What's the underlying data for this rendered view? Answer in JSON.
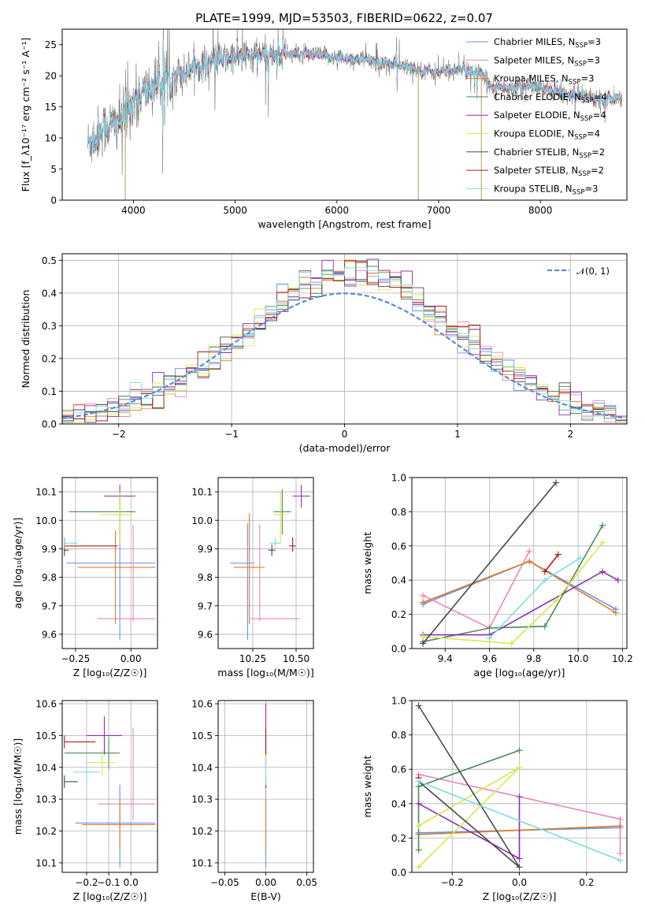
{
  "figure_title": "PLATE=1999, MJD=53503, FIBERID=0622, z=0.07",
  "colors": [
    "#6495ed",
    "#e887c0",
    "#e07b26",
    "#4e8a5a",
    "#8b2fb7",
    "#d6e84b",
    "#4a4a4a",
    "#b01c1c",
    "#7fdce0"
  ],
  "chart_data": [
    {
      "id": "spectrum",
      "type": "line",
      "title": "PLATE=1999, MJD=53503, FIBERID=0622, z=0.07",
      "xlabel": "wavelength [Angstrom, rest frame]",
      "ylabel": "Flux [f_λ10⁻¹⁷ erg cm⁻² s⁻¹ A⁻¹]",
      "xlim": [
        3300,
        8850
      ],
      "ylim": [
        0,
        27.5
      ],
      "xticks": [
        4000,
        5000,
        6000,
        7000,
        8000
      ],
      "yticks": [
        0,
        5,
        10,
        15,
        20,
        25
      ],
      "legend_position": "upper-right",
      "grid": false,
      "legend": [
        {
          "name": "Chabrier MILES, N_SSP=3",
          "label_main": "Chabrier MILES, N",
          "label_sub": "SSP",
          "label_end": "=3"
        },
        {
          "name": "Salpeter MILES, N_SSP=3",
          "label_main": "Salpeter MILES, N",
          "label_sub": "SSP",
          "label_end": "=3"
        },
        {
          "name": "Kroupa MILES, N_SSP=3",
          "label_main": "Kroupa MILES, N",
          "label_sub": "SSP",
          "label_end": "=3"
        },
        {
          "name": "Chabrier ELODIE, N_SSP=4",
          "label_main": "Chabrier ELODIE, N",
          "label_sub": "SSP",
          "label_end": "=4"
        },
        {
          "name": "Salpeter ELODIE, N_SSP=4",
          "label_main": "Salpeter ELODIE, N",
          "label_sub": "SSP",
          "label_end": "=4"
        },
        {
          "name": "Kroupa ELODIE, N_SSP=4",
          "label_main": "Kroupa ELODIE, N",
          "label_sub": "SSP",
          "label_end": "=4"
        },
        {
          "name": "Chabrier STELIB, N_SSP=2",
          "label_main": "Chabrier STELIB, N",
          "label_sub": "SSP",
          "label_end": "=2"
        },
        {
          "name": "Salpeter STELIB, N_SSP=2",
          "label_main": "Salpeter STELIB, N",
          "label_sub": "SSP",
          "label_end": "=2"
        },
        {
          "name": "Kroupa STELIB, N_SSP=3",
          "label_main": "Kroupa STELIB, N",
          "label_sub": "SSP",
          "label_end": "=3"
        }
      ],
      "continuum_x": [
        3550,
        3700,
        3900,
        4000,
        4200,
        4400,
        4600,
        4800,
        5000,
        5200,
        5500,
        5800,
        6000,
        6300,
        6500,
        6800,
        7000,
        7200,
        7400,
        7500,
        7700,
        7900,
        8100,
        8300,
        8500,
        8800
      ],
      "continuum_y": [
        9,
        11.5,
        13,
        16,
        18.5,
        20,
        21.5,
        22.5,
        23,
        23.2,
        23.5,
        23.3,
        23,
        22.5,
        22,
        21,
        20.5,
        21,
        20.5,
        18.5,
        18,
        18.5,
        17.5,
        17,
        16.5,
        16.5
      ],
      "artifact_lines_x": [
        3920,
        6800,
        7420
      ]
    },
    {
      "id": "residuals",
      "type": "step",
      "xlabel": "(data-model)/error",
      "ylabel": "Normed distribution",
      "xlim": [
        -2.5,
        2.5
      ],
      "ylim": [
        0,
        0.52
      ],
      "xticks": [
        -2,
        -1,
        0,
        1,
        2
      ],
      "yticks": [
        0.0,
        0.1,
        0.2,
        0.3,
        0.4,
        0.5
      ],
      "grid": true,
      "bin_width": 0.1,
      "legend": [
        {
          "name": "𝒩(0, 1)",
          "style": "dashed"
        }
      ],
      "legend_position": "upper-right"
    },
    {
      "id": "age-vs-Z",
      "type": "errorbar",
      "xlabel": "Z [log₁₀(Z/Z☉)]",
      "ylabel": "age  [log₁₀(age/yr)]",
      "xlim": [
        -0.31,
        0.12
      ],
      "ylim": [
        9.55,
        10.15
      ],
      "xticks": [
        -0.25,
        0.0
      ],
      "xtick_labels": [
        "−0.25",
        "0.00"
      ],
      "yticks": [
        9.6,
        9.7,
        9.8,
        9.9,
        10.0,
        10.1
      ],
      "grid": true,
      "points": [
        {
          "x": -0.05,
          "xerr": [
            0.24,
            0.16
          ],
          "y": 9.85,
          "yerr": [
            0.27,
            0.17
          ]
        },
        {
          "x": 0.01,
          "xerr": [
            0.16,
            0.1
          ],
          "y": 9.655,
          "yerr": [
            0.01,
            0.33
          ]
        },
        {
          "x": -0.07,
          "xerr": [
            0.17,
            0.18
          ],
          "y": 9.835,
          "yerr": [
            0.2,
            0.13
          ]
        },
        {
          "x": -0.05,
          "xerr": [
            0.23,
            0.07
          ],
          "y": 10.03,
          "yerr": [
            0.08,
            0.06
          ]
        },
        {
          "x": -0.05,
          "xerr": [
            0.07,
            0.07
          ],
          "y": 10.085,
          "yerr": [
            0.03,
            0.04
          ]
        },
        {
          "x": -0.05,
          "xerr": [
            0.09,
            0.05
          ],
          "y": 10.02,
          "yerr": [
            0.1,
            0.08
          ]
        },
        {
          "x": -0.3,
          "xerr": [
            0.0,
            0.02
          ],
          "y": 9.895,
          "yerr": [
            0.02,
            0.02
          ]
        },
        {
          "x": -0.3,
          "xerr": [
            0.0,
            0.24
          ],
          "y": 9.91,
          "yerr": [
            0.02,
            0.03
          ]
        },
        {
          "x": -0.3,
          "xerr": [
            0.0,
            0.06
          ],
          "y": 9.92,
          "yerr": [
            0.02,
            0.02
          ]
        }
      ]
    },
    {
      "id": "age-vs-mass",
      "type": "errorbar",
      "xlabel": "mass [log₁₀(M/M☉)]",
      "ylabel": "",
      "xlim": [
        10.05,
        10.6
      ],
      "ylim": [
        9.55,
        10.15
      ],
      "xticks": [
        10.25,
        10.5
      ],
      "xtick_labels": [
        "10.25",
        "10.50"
      ],
      "yticks": [
        9.6,
        9.7,
        9.8,
        9.9,
        10.0,
        10.1
      ],
      "grid": true,
      "points": [
        {
          "x": 10.22,
          "xerr": [
            0.1,
            0.04
          ],
          "y": 9.85,
          "yerr": [
            0.27,
            0.14
          ]
        },
        {
          "x": 10.29,
          "xerr": [
            0.05,
            0.23
          ],
          "y": 9.655,
          "yerr": [
            0.01,
            0.33
          ]
        },
        {
          "x": 10.23,
          "xerr": [
            0.09,
            0.09
          ],
          "y": 9.835,
          "yerr": [
            0.2,
            0.19
          ]
        },
        {
          "x": 10.42,
          "xerr": [
            0.05,
            0.05
          ],
          "y": 10.03,
          "yerr": [
            0.08,
            0.08
          ]
        },
        {
          "x": 10.53,
          "xerr": [
            0.05,
            0.05
          ],
          "y": 10.085,
          "yerr": [
            0.04,
            0.04
          ]
        },
        {
          "x": 10.41,
          "xerr": [
            0.04,
            0.04
          ],
          "y": 10.02,
          "yerr": [
            0.1,
            0.08
          ]
        },
        {
          "x": 10.36,
          "xerr": [
            0.02,
            0.02
          ],
          "y": 9.895,
          "yerr": [
            0.02,
            0.02
          ]
        },
        {
          "x": 10.48,
          "xerr": [
            0.02,
            0.02
          ],
          "y": 9.91,
          "yerr": [
            0.02,
            0.03
          ]
        },
        {
          "x": 10.38,
          "xerr": [
            0.03,
            0.03
          ],
          "y": 9.92,
          "yerr": [
            0.02,
            0.02
          ]
        }
      ]
    },
    {
      "id": "weight-vs-age",
      "type": "line",
      "xlabel": "age  [log₁₀(age/yr)]",
      "ylabel": "mass weight",
      "xlim": [
        9.25,
        10.22
      ],
      "ylim": [
        0.0,
        1.0
      ],
      "xticks": [
        9.4,
        9.6,
        9.8,
        10.0,
        10.2
      ],
      "yticks": [
        0.0,
        0.2,
        0.4,
        0.6,
        0.8,
        1.0
      ],
      "grid": true,
      "series": [
        {
          "x": [
            9.3,
            9.78,
            10.17
          ],
          "y": [
            0.26,
            0.51,
            0.23
          ]
        },
        {
          "x": [
            9.3,
            9.6,
            9.78
          ],
          "y": [
            0.31,
            0.12,
            0.57
          ]
        },
        {
          "x": [
            9.3,
            9.78,
            10.17
          ],
          "y": [
            0.27,
            0.51,
            0.21
          ]
        },
        {
          "x": [
            9.3,
            9.6,
            9.85,
            10.11
          ],
          "y": [
            0.04,
            0.12,
            0.13,
            0.72
          ]
        },
        {
          "x": [
            9.3,
            9.6,
            10.11,
            10.18
          ],
          "y": [
            0.08,
            0.08,
            0.45,
            0.4
          ]
        },
        {
          "x": [
            9.3,
            9.7,
            9.9,
            10.11
          ],
          "y": [
            0.07,
            0.03,
            0.28,
            0.62
          ]
        },
        {
          "x": [
            9.3,
            9.9
          ],
          "y": [
            0.03,
            0.97
          ]
        },
        {
          "x": [
            9.85,
            9.91
          ],
          "y": [
            0.45,
            0.55
          ]
        },
        {
          "x": [
            9.6,
            9.85,
            10.01
          ],
          "y": [
            0.06,
            0.4,
            0.53
          ]
        }
      ]
    },
    {
      "id": "mass-vs-Z",
      "type": "errorbar",
      "xlabel": "Z [log₁₀(Z/Z☉)]",
      "ylabel": "mass [log₁₀(M/M☉)]",
      "xlim": [
        -0.31,
        0.12
      ],
      "ylim": [
        10.07,
        10.61
      ],
      "xticks": [
        -0.2,
        -0.1,
        0.0
      ],
      "xtick_labels": [
        "−0.2",
        "−0.1",
        "0.0"
      ],
      "yticks": [
        10.1,
        10.2,
        10.3,
        10.4,
        10.5,
        10.6
      ],
      "grid": true,
      "points": [
        {
          "x": -0.05,
          "xerr": [
            0.2,
            0.16
          ],
          "y": 10.225,
          "yerr": [
            0.14,
            0.12
          ]
        },
        {
          "x": 0.01,
          "xerr": [
            0.16,
            0.1
          ],
          "y": 10.285,
          "yerr": [
            0.05,
            0.24
          ]
        },
        {
          "x": -0.05,
          "xerr": [
            0.17,
            0.16
          ],
          "y": 10.22,
          "yerr": [
            0.08,
            0.08
          ]
        },
        {
          "x": -0.1,
          "xerr": [
            0.2,
            0.05
          ],
          "y": 10.445,
          "yerr": [
            0.05,
            0.05
          ]
        },
        {
          "x": -0.12,
          "xerr": [
            0.08,
            0.08
          ],
          "y": 10.5,
          "yerr": [
            0.06,
            0.06
          ]
        },
        {
          "x": -0.13,
          "xerr": [
            0.07,
            0.06
          ],
          "y": 10.415,
          "yerr": [
            0.04,
            0.04
          ]
        },
        {
          "x": -0.3,
          "xerr": [
            0.0,
            0.06
          ],
          "y": 10.355,
          "yerr": [
            0.02,
            0.02
          ]
        },
        {
          "x": -0.3,
          "xerr": [
            0.0,
            0.14
          ],
          "y": 10.48,
          "yerr": [
            0.02,
            0.02
          ]
        },
        {
          "x": -0.2,
          "xerr": [
            0.06,
            0.06
          ],
          "y": 10.385,
          "yerr": [
            0.04,
            0.04
          ]
        }
      ]
    },
    {
      "id": "mass-vs-EBV",
      "type": "errorbar",
      "xlabel": "E(B-V)",
      "ylabel": "",
      "xlim": [
        -0.058,
        0.058
      ],
      "ylim": [
        10.07,
        10.61
      ],
      "xticks": [
        -0.05,
        0.0,
        0.05
      ],
      "xtick_labels": [
        "−0.05",
        "0.00",
        "0.05"
      ],
      "yticks": [
        10.1,
        10.2,
        10.3,
        10.4,
        10.5,
        10.6
      ],
      "grid": true,
      "points": [
        {
          "x": 0.0,
          "xerr": [
            0.0,
            0.0
          ],
          "y": 10.225,
          "yerr": [
            0.14,
            0.12
          ]
        },
        {
          "x": 0.0,
          "xerr": [
            0.0,
            0.0
          ],
          "y": 10.285,
          "yerr": [
            0.05,
            0.24
          ]
        },
        {
          "x": 0.0,
          "xerr": [
            0.0,
            0.0
          ],
          "y": 10.22,
          "yerr": [
            0.08,
            0.08
          ]
        },
        {
          "x": 0.0,
          "xerr": [
            0.0,
            0.0
          ],
          "y": 10.445,
          "yerr": [
            0.05,
            0.05
          ]
        },
        {
          "x": 0.0,
          "xerr": [
            0.0,
            0.0
          ],
          "y": 10.5,
          "yerr": [
            0.1,
            0.1
          ]
        },
        {
          "x": 0.0,
          "xerr": [
            0.0,
            0.0
          ],
          "y": 10.415,
          "yerr": [
            0.04,
            0.04
          ]
        },
        {
          "x": 0.0,
          "xerr": [
            0.0,
            0.0
          ],
          "y": 10.355,
          "yerr": [
            0.02,
            0.02
          ]
        },
        {
          "x": 0.0,
          "xerr": [
            0.0,
            0.0
          ],
          "y": 10.48,
          "yerr": [
            0.04,
            0.04
          ]
        },
        {
          "x": 0.0,
          "xerr": [
            0.0,
            0.0
          ],
          "y": 10.385,
          "yerr": [
            0.04,
            0.04
          ]
        }
      ]
    },
    {
      "id": "weight-vs-Z",
      "type": "line",
      "xlabel": "Z [log₁₀(Z/Z☉)]",
      "ylabel": "mass weight",
      "xlim": [
        -0.32,
        0.32
      ],
      "ylim": [
        0.0,
        1.0
      ],
      "xticks": [
        -0.2,
        0.0,
        0.2
      ],
      "xtick_labels": [
        "−0.2",
        "0.0",
        "0.2"
      ],
      "yticks": [
        0.0,
        0.2,
        0.4,
        0.6,
        0.8,
        1.0
      ],
      "grid": true,
      "series": [
        {
          "x": [
            -0.3,
            0.3
          ],
          "y": [
            0.23,
            0.26
          ]
        },
        {
          "x": [
            -0.3,
            0.3,
            0.3
          ],
          "y": [
            0.57,
            0.31,
            0.11
          ]
        },
        {
          "x": [
            -0.3,
            0.3
          ],
          "y": [
            0.22,
            0.27
          ]
        },
        {
          "x": [
            -0.3,
            -0.3,
            0.0
          ],
          "y": [
            0.13,
            0.5,
            0.71
          ]
        },
        {
          "x": [
            -0.3,
            0.0,
            0.0
          ],
          "y": [
            0.4,
            0.08,
            0.44
          ]
        },
        {
          "x": [
            -0.3,
            0.0,
            -0.3
          ],
          "y": [
            0.03,
            0.61,
            0.27
          ]
        },
        {
          "x": [
            -0.3,
            0.0,
            -0.3
          ],
          "y": [
            0.97,
            0.03,
            0.53
          ]
        },
        {
          "x": [
            -0.3
          ],
          "y": [
            0.55
          ]
        },
        {
          "x": [
            -0.3,
            0.3
          ],
          "y": [
            0.53,
            0.07
          ]
        }
      ]
    }
  ]
}
